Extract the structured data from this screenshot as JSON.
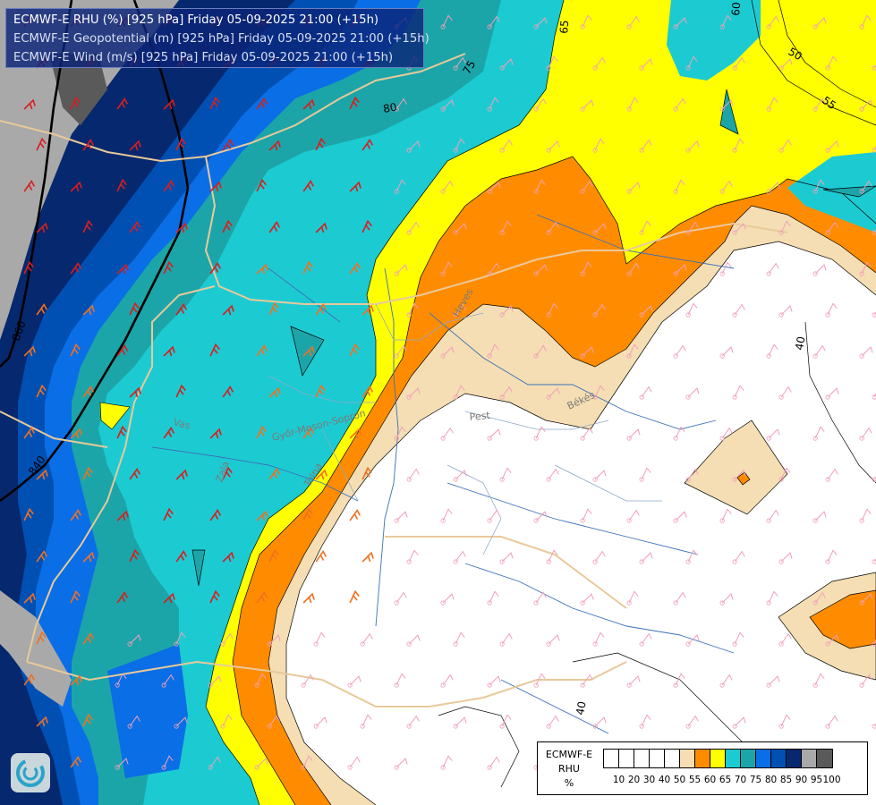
{
  "header": {
    "line1": "ECMWF-E RHU (%) [925 hPa] Friday 05-09-2025 21:00 (+15h)",
    "line2": "ECMWF-E Geopotential (m) [925 hPa] Friday 05-09-2025 21:00 (+15h)",
    "line3": "ECMWF-E Wind (m/s) [925 hPa] Friday 05-09-2025 21:00 (+15h)"
  },
  "legend": {
    "title_lines": [
      "ECMWF-E",
      "RHU",
      "%"
    ],
    "bins": [
      {
        "label": "10",
        "color": "#ffffff"
      },
      {
        "label": "20",
        "color": "#ffffff"
      },
      {
        "label": "30",
        "color": "#ffffff"
      },
      {
        "label": "40",
        "color": "#ffffff"
      },
      {
        "label": "50",
        "color": "#ffffff"
      },
      {
        "label": "55",
        "color": "#f5deb3"
      },
      {
        "label": "60",
        "color": "#ff8c00"
      },
      {
        "label": "65",
        "color": "#ffff00"
      },
      {
        "label": "70",
        "color": "#1ccbd2"
      },
      {
        "label": "75",
        "color": "#1ca5a8"
      },
      {
        "label": "80",
        "color": "#0a6ee6"
      },
      {
        "label": "85",
        "color": "#0050b4"
      },
      {
        "label": "90",
        "color": "#06286e"
      },
      {
        "label": "95",
        "color": "#a9a9a9"
      },
      {
        "label": "100",
        "color": "#5a5a5a"
      }
    ]
  },
  "contour_labels": {
    "geo_840": "840",
    "geo_860": "860",
    "rh_40a": "40",
    "rh_40b": "40",
    "rh_50": "50",
    "rh_55": "55",
    "rh_65": "65",
    "rh_75": "75",
    "rh_80": "80",
    "rh_60": "60"
  },
  "place_labels": {
    "vas": "Vas",
    "zala": "Zala",
    "gyor": "Győr-Moson-Sopron",
    "pest": "Pest",
    "bekes": "Békés",
    "heves": "Heves",
    "tolna": "Tolna"
  },
  "colors": {
    "white": "#ffffff",
    "wheat": "#f5deb3",
    "orange": "#ff8c00",
    "yellow": "#ffff00",
    "cyan": "#1ccbd2",
    "teal": "#1ca5a8",
    "blue": "#0a6ee6",
    "mid_blue": "#0050b4",
    "navy": "#06286e",
    "gray": "#a9a9a9",
    "dark_gray": "#5a5a5a",
    "border": "#e8c99a",
    "river": "#3a70b8",
    "barb_red": "#d81e1e",
    "barb_orange": "#f07020",
    "barb_pink": "#f0a0b8"
  },
  "logo": {
    "icon": "ecmwf-logo-icon"
  }
}
